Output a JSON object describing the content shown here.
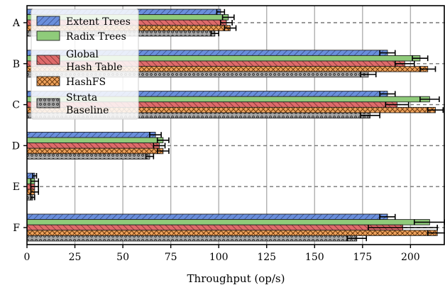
{
  "chart_data": {
    "type": "bar",
    "orientation": "horizontal",
    "categories": [
      "A",
      "B",
      "C",
      "D",
      "E",
      "F"
    ],
    "xlabel": "Throughput (op/s)",
    "ylabel": "",
    "xlim": [
      0,
      218
    ],
    "xticks": [
      0,
      25,
      50,
      75,
      100,
      125,
      150,
      175,
      200
    ],
    "grid": "vertical",
    "legend_position": "top-left",
    "series": [
      {
        "name": "Extent Trees",
        "color": "#6a8fdc",
        "hatch": "diagonal-forward",
        "values": [
          101,
          188,
          188,
          67,
          4,
          188
        ],
        "errors": [
          2,
          4,
          4,
          3,
          1,
          4
        ]
      },
      {
        "name": "Radix Trees",
        "color": "#8fcb7a",
        "hatch": "none",
        "values": [
          105,
          205,
          210,
          71,
          4,
          210
        ],
        "errors": [
          3,
          4,
          5,
          3,
          2,
          8
        ]
      },
      {
        "name": "Global Hash Table",
        "color": "#de6b6b",
        "hatch": "diagonal-backward",
        "values": [
          104,
          197,
          193,
          69,
          4,
          196
        ],
        "errors": [
          3,
          5,
          6,
          3,
          2,
          18
        ]
      },
      {
        "name": "HashFS",
        "color": "#f0a35c",
        "hatch": "cross",
        "values": [
          106,
          209,
          213,
          71,
          4,
          214
        ],
        "errors": [
          3,
          4,
          4,
          3,
          2,
          5
        ]
      },
      {
        "name": "Strata Baseline",
        "color": "#a9a9a9",
        "hatch": "dots",
        "values": [
          98,
          178,
          179,
          64,
          3,
          172
        ],
        "errors": [
          2,
          4,
          5,
          2,
          1,
          5
        ]
      }
    ],
    "series_legend_lines": [
      [
        "Extent Trees"
      ],
      [
        "Radix Trees"
      ],
      [
        "Global",
        "Hash Table"
      ],
      [
        "HashFS"
      ],
      [
        "Strata",
        "Baseline"
      ]
    ]
  }
}
